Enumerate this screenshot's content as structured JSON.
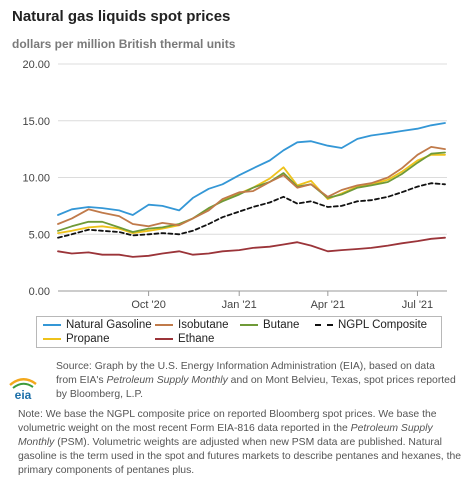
{
  "title": "Natural gas liquids spot prices",
  "subtitle": "dollars per million British thermal units",
  "legend": [
    {
      "name": "Natural Gasoline",
      "color": "#3497d6",
      "style": "solid"
    },
    {
      "name": "Isobutane",
      "color": "#c07a4a",
      "style": "solid"
    },
    {
      "name": "Butane",
      "color": "#6f9a38",
      "style": "solid"
    },
    {
      "name": "NGPL Composite",
      "color": "#111111",
      "style": "dashed"
    },
    {
      "name": "Propane",
      "color": "#eec21b",
      "style": "solid"
    },
    {
      "name": "Ethane",
      "color": "#9b3439",
      "style": "solid"
    }
  ],
  "source": {
    "p1": "Source: Graph by the U.S. Energy Information Administration (EIA), based on data from EIA's ",
    "i1": "Petroleum Supply Monthly",
    "p2": " and on Mont Belvieu, Texas, spot prices reported by Bloomberg, L.P."
  },
  "note": {
    "p1": "Note: We base the NGPL composite price on reported Bloomberg spot prices. We base the volumetric weight on the most recent Form EIA-816 data reported in the ",
    "i1": "Petroleum Supply Monthly",
    "p2": " (PSM). Volumetric weights are adjusted when new PSM data are published. Natural gasoline is the term used in the spot and futures markets to describe pentanes and hexanes, the primary components of pentanes plus."
  },
  "logo": {
    "text": "eia",
    "colors": [
      "#f3a81c",
      "#3d9a3d",
      "#1c6fa8"
    ]
  },
  "chart_data": {
    "type": "line",
    "title": "Natural gas liquids spot prices",
    "ylabel": "dollars per million British thermal units",
    "ylim": [
      0,
      20
    ],
    "yticks": [
      "0.00",
      "5.00",
      "10.00",
      "15.00",
      "20.00"
    ],
    "xlim": [
      "2020-07-01",
      "2021-07-31"
    ],
    "xticks": [
      {
        "label": "Oct '20",
        "date": "2020-10-01"
      },
      {
        "label": "Jan '21",
        "date": "2021-01-01"
      },
      {
        "label": "Apr '21",
        "date": "2021-04-01"
      },
      {
        "label": "Jul '21",
        "date": "2021-07-01"
      }
    ],
    "grid": "horizontal",
    "legend_position": "bottom",
    "x": [
      "2020-07-01",
      "2020-07-15",
      "2020-08-01",
      "2020-08-15",
      "2020-09-01",
      "2020-09-15",
      "2020-10-01",
      "2020-10-15",
      "2020-11-01",
      "2020-11-15",
      "2020-12-01",
      "2020-12-15",
      "2021-01-01",
      "2021-01-15",
      "2021-02-01",
      "2021-02-15",
      "2021-03-01",
      "2021-03-15",
      "2021-04-01",
      "2021-04-15",
      "2021-05-01",
      "2021-05-15",
      "2021-06-01",
      "2021-06-15",
      "2021-07-01",
      "2021-07-15",
      "2021-07-29"
    ],
    "series": [
      {
        "name": "Natural Gasoline",
        "color": "#3497d6",
        "values": [
          6.7,
          7.2,
          7.4,
          7.3,
          7.1,
          6.7,
          7.6,
          7.5,
          7.1,
          8.2,
          9.0,
          9.4,
          10.2,
          10.8,
          11.5,
          12.4,
          13.1,
          13.2,
          12.8,
          12.6,
          13.4,
          13.7,
          13.9,
          14.1,
          14.3,
          14.6,
          14.8
        ]
      },
      {
        "name": "Isobutane",
        "color": "#c07a4a",
        "values": [
          5.9,
          6.4,
          7.2,
          6.9,
          6.6,
          5.9,
          5.7,
          6.0,
          5.8,
          6.4,
          7.1,
          8.1,
          8.7,
          8.8,
          9.6,
          10.2,
          9.1,
          9.4,
          8.3,
          8.9,
          9.3,
          9.5,
          10.0,
          10.8,
          12.0,
          12.7,
          12.5
        ]
      },
      {
        "name": "Butane",
        "color": "#6f9a38",
        "values": [
          5.3,
          5.7,
          6.1,
          6.1,
          5.6,
          5.2,
          5.5,
          5.6,
          5.9,
          6.4,
          7.3,
          7.9,
          8.5,
          9.1,
          9.6,
          10.4,
          9.2,
          9.4,
          8.2,
          8.5,
          9.1,
          9.3,
          9.6,
          10.3,
          11.3,
          12.1,
          12.2
        ]
      },
      {
        "name": "NGPL Composite",
        "color": "#111111",
        "values": [
          4.7,
          5.0,
          5.4,
          5.3,
          5.2,
          4.9,
          5.0,
          5.1,
          5.0,
          5.3,
          5.9,
          6.5,
          7.0,
          7.4,
          7.8,
          8.3,
          7.7,
          7.9,
          7.4,
          7.5,
          7.9,
          8.0,
          8.3,
          8.7,
          9.2,
          9.5,
          9.4
        ]
      },
      {
        "name": "Propane",
        "color": "#eec21b",
        "values": [
          5.1,
          5.3,
          5.6,
          5.7,
          5.5,
          5.1,
          5.3,
          5.5,
          5.8,
          6.4,
          7.2,
          8.0,
          8.6,
          9.1,
          9.9,
          10.9,
          9.3,
          9.7,
          8.1,
          8.6,
          9.2,
          9.4,
          9.8,
          10.5,
          11.5,
          12.0,
          12.0
        ]
      },
      {
        "name": "Ethane",
        "color": "#9b3439",
        "values": [
          3.5,
          3.3,
          3.4,
          3.2,
          3.2,
          3.0,
          3.1,
          3.3,
          3.5,
          3.2,
          3.3,
          3.5,
          3.6,
          3.8,
          3.9,
          4.1,
          4.3,
          4.0,
          3.5,
          3.6,
          3.7,
          3.8,
          4.0,
          4.2,
          4.4,
          4.6,
          4.7
        ]
      }
    ]
  }
}
